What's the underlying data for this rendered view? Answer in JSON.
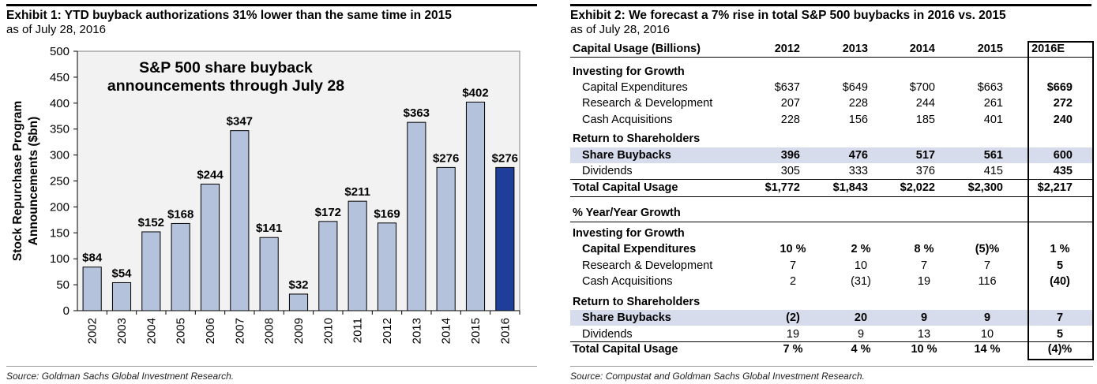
{
  "exhibit1": {
    "title": "Exhibit 1: YTD buyback authorizations 31% lower than the same time in 2015",
    "subtitle": "as of July 28, 2016",
    "source": "Source: Goldman Sachs Global Investment Research."
  },
  "exhibit2": {
    "title": "Exhibit 2: We forecast a 7% rise in total S&P 500 buybacks in 2016 vs. 2015",
    "subtitle": "as of July 28, 2016",
    "source": "Source: Compustat and Goldman Sachs Global Investment Research.",
    "header_label": "Capital Usage (Billions)",
    "years": [
      "2012",
      "2013",
      "2014",
      "2015",
      "2016E"
    ],
    "amounts": {
      "section1": "Investing for Growth",
      "capex_label": "Capital Expenditures",
      "capex": [
        "$637",
        "$649",
        "$700",
        "$663",
        "$669"
      ],
      "rnd_label": "Research & Development",
      "rnd": [
        "207",
        "228",
        "244",
        "261",
        "272"
      ],
      "acq_label": "Cash Acquisitions",
      "acq": [
        "228",
        "156",
        "185",
        "401",
        "240"
      ],
      "section2": "Return to Shareholders",
      "buyback_label": "Share Buybacks",
      "buyback": [
        "396",
        "476",
        "517",
        "561",
        "600"
      ],
      "div_label": "Dividends",
      "div": [
        "305",
        "333",
        "376",
        "415",
        "435"
      ],
      "total_label": "Total Capital Usage",
      "total": [
        "$1,772",
        "$1,843",
        "$2,022",
        "$2,300",
        "$2,217"
      ]
    },
    "growth": {
      "header": "% Year/Year Growth",
      "section1": "Investing for Growth",
      "capex_label": "Capital Expenditures",
      "capex": [
        "10 %",
        "2 %",
        "8 %",
        "(5)%",
        "1 %"
      ],
      "rnd_label": "Research & Development",
      "rnd": [
        "7",
        "10",
        "7",
        "7",
        "5"
      ],
      "acq_label": "Cash Acquisitions",
      "acq": [
        "2",
        "(31)",
        "19",
        "116",
        "(40)"
      ],
      "section2": "Return to Shareholders",
      "buyback_label": "Share Buybacks",
      "buyback": [
        "(2)",
        "20",
        "9",
        "9",
        "7"
      ],
      "div_label": "Dividends",
      "div": [
        "19",
        "9",
        "13",
        "10",
        "5"
      ],
      "total_label": "Total Capital Usage",
      "total": [
        "7 %",
        "4 %",
        "10 %",
        "14 %",
        "(4)%"
      ]
    }
  },
  "chart_data": {
    "type": "bar",
    "title": "S&P 500 share buyback announcements through July 28",
    "ylabel": "Stock Repurchase Program Announcements ($bn)",
    "xlabel": "",
    "ylim": [
      0,
      500
    ],
    "yticks": [
      0,
      50,
      100,
      150,
      200,
      250,
      300,
      350,
      400,
      450,
      500
    ],
    "categories": [
      "2002",
      "2003",
      "2004",
      "2005",
      "2006",
      "2007",
      "2008",
      "2009",
      "2010",
      "2011",
      "2012",
      "2013",
      "2014",
      "2015",
      "2016"
    ],
    "values": [
      84,
      54,
      152,
      168,
      244,
      347,
      141,
      32,
      172,
      211,
      169,
      363,
      276,
      402,
      276
    ],
    "labels": [
      "$84",
      "$54",
      "$152",
      "$168",
      "$244",
      "$347",
      "$141",
      "$32",
      "$172",
      "$211",
      "$169",
      "$363",
      "$276",
      "$402",
      "$276"
    ],
    "colors": {
      "bar": "#b4c2dc",
      "highlight": "#1f3e99",
      "edge": "#000000",
      "plot_bg": "#f2f2f2"
    }
  }
}
